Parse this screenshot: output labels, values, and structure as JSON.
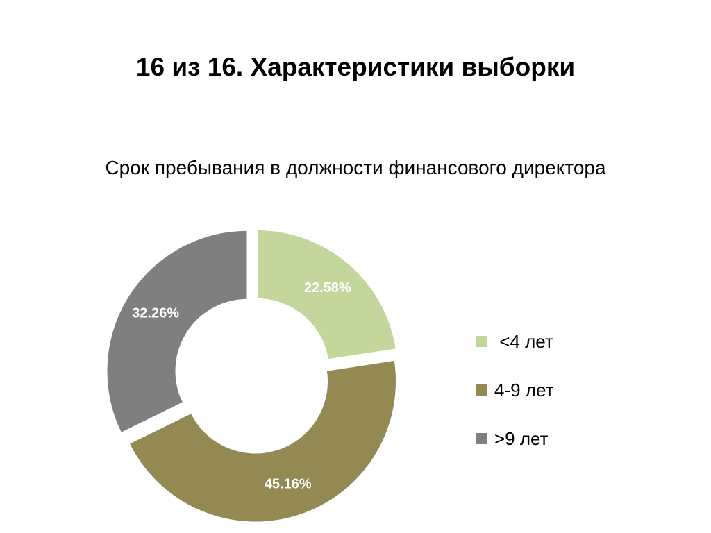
{
  "slide": {
    "title": "16 из 16. Характеристики выборки"
  },
  "chart_data": {
    "type": "pie",
    "style": "doughnut",
    "title": "Срок пребывания в должности финансового директора",
    "categories": [
      "<4 лет",
      "4-9 лет",
      ">9 лет"
    ],
    "values": [
      22.58,
      45.16,
      32.26
    ],
    "data_labels": [
      "22.58%",
      "45.16%",
      "32.26%"
    ],
    "colors": [
      "#c3d69b",
      "#938953",
      "#7f7f7f"
    ],
    "label_color": "#ffffff",
    "legend_position": "right",
    "legend": [
      {
        "label": " <4 лет",
        "color": "#c3d69b"
      },
      {
        "label": "4-9 лет",
        "color": "#938953"
      },
      {
        "label": ">9 лет",
        "color": "#7f7f7f"
      }
    ]
  }
}
